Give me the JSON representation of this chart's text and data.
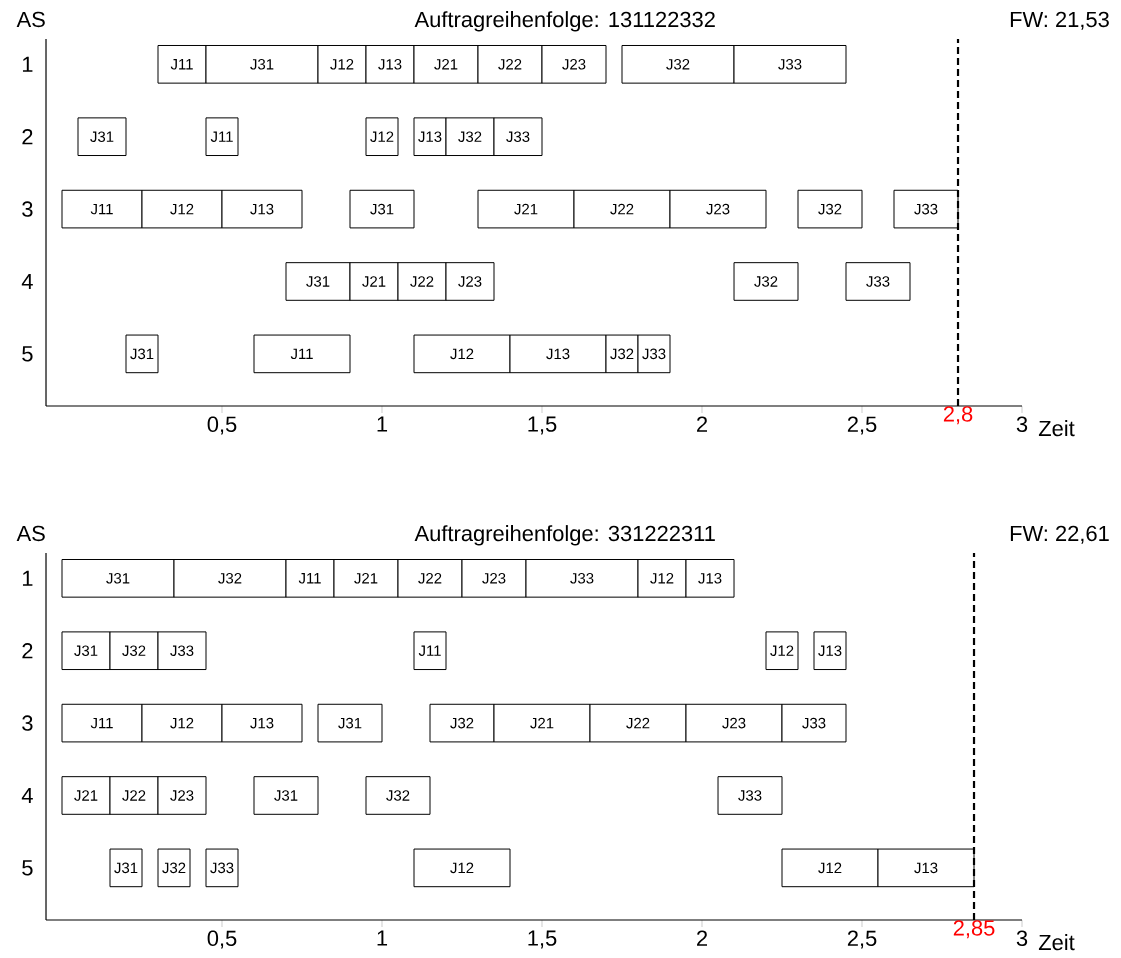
{
  "chart_data": [
    {
      "type": "bar",
      "orientation": "horizontal",
      "title": "Auftragreihenfolge: 131122332",
      "ylabel": "AS",
      "xlabel": "Zeit",
      "annotations": [
        "FW: 21,53"
      ],
      "categories": [
        "1",
        "2",
        "3",
        "4",
        "5"
      ],
      "xlim": [
        -0.05,
        3
      ],
      "xticks": [
        {
          "value": 0.5,
          "label": "0,5"
        },
        {
          "value": 1,
          "label": "1"
        },
        {
          "value": 1.5,
          "label": "1,5"
        },
        {
          "value": 2,
          "label": "2"
        },
        {
          "value": 2.5,
          "label": "2,5"
        },
        {
          "value": 3,
          "label": "3"
        }
      ],
      "ref_lines": [
        {
          "axis": "x",
          "value": 2.8,
          "label": "2,8",
          "line_style": "dashed"
        }
      ],
      "series": [
        {
          "color": "#ffffff",
          "values": [
            0.15,
            0.15,
            0.25,
            0.2,
            0.1
          ],
          "base": [
            0.3,
            0.05,
            0,
            0.7,
            0.2
          ],
          "value_labels": [
            "J11",
            "J31",
            "J11",
            "J31",
            "J31"
          ]
        },
        {
          "color": "#ffffff",
          "values": [
            0.35,
            0.1,
            0.25,
            0.15,
            0.3
          ],
          "base": [
            0.45,
            0.45,
            0.25,
            0.9,
            0.6
          ],
          "value_labels": [
            "J31",
            "J11",
            "J12",
            "J21",
            "J11"
          ]
        },
        {
          "color": "#ffffff",
          "values": [
            0.15,
            0.1,
            0.25,
            0.15,
            0.3
          ],
          "base": [
            0.8,
            0.95,
            0.5,
            1.05,
            1.1
          ],
          "value_labels": [
            "J12",
            "J12",
            "J13",
            "J22",
            "J12"
          ]
        },
        {
          "color": "#ffffff",
          "values": [
            0.15,
            0.1,
            0.2,
            0.15,
            0.3
          ],
          "base": [
            0.95,
            1.1,
            0.9,
            1.2,
            1.4
          ],
          "value_labels": [
            "J13",
            "J13",
            "J31",
            "J23",
            "J13"
          ]
        },
        {
          "color": "#ffffff",
          "values": [
            0.2,
            0.15,
            0.3,
            0.2,
            0.1
          ],
          "base": [
            1.1,
            1.2,
            1.3,
            2.1,
            1.7
          ],
          "value_labels": [
            "J21",
            "J32",
            "J21",
            "J32",
            "J32"
          ]
        },
        {
          "color": "#ffffff",
          "values": [
            0.2,
            0.15,
            0.3,
            0.2,
            0.1
          ],
          "base": [
            1.3,
            1.35,
            1.6,
            2.45,
            1.8
          ],
          "value_labels": [
            "J22",
            "J33",
            "J22",
            "J33",
            "J33"
          ]
        },
        {
          "color": "#ffffff",
          "values": [
            0.2,
            null,
            0.3,
            null,
            null
          ],
          "base": [
            1.5,
            null,
            1.9,
            null,
            null
          ],
          "value_labels": [
            "J23",
            null,
            "J23",
            null,
            null
          ]
        },
        {
          "color": "#ffffff",
          "values": [
            0.35,
            null,
            0.2,
            null,
            null
          ],
          "base": [
            1.75,
            null,
            2.3,
            null,
            null
          ],
          "value_labels": [
            "J32",
            null,
            "J32",
            null,
            null
          ]
        },
        {
          "color": "#ffffff",
          "values": [
            0.35,
            null,
            0.2,
            null,
            null
          ],
          "base": [
            2.1,
            null,
            2.6,
            null,
            null
          ],
          "value_labels": [
            "J33",
            null,
            "J33",
            null,
            null
          ]
        }
      ]
    },
    {
      "type": "bar",
      "orientation": "horizontal",
      "title": "Auftragreihenfolge: 331222311",
      "ylabel": "AS",
      "xlabel": "Zeit",
      "annotations": [
        "FW: 22,61"
      ],
      "categories": [
        "1",
        "2",
        "3",
        "4",
        "5"
      ],
      "xlim": [
        -0.05,
        3
      ],
      "xticks": [
        {
          "value": 0.5,
          "label": "0,5"
        },
        {
          "value": 1,
          "label": "1"
        },
        {
          "value": 1.5,
          "label": "1,5"
        },
        {
          "value": 2,
          "label": "2"
        },
        {
          "value": 2.5,
          "label": "2,5"
        },
        {
          "value": 3,
          "label": "3"
        }
      ],
      "ref_lines": [
        {
          "axis": "x",
          "value": 2.85,
          "label": "2,85",
          "line_style": "dashed"
        }
      ],
      "series": [
        {
          "color": "#ffffff",
          "values": [
            0.35,
            0.15,
            0.25,
            0.15,
            0.1
          ],
          "base": [
            0,
            0,
            0,
            0,
            0.15
          ],
          "value_labels": [
            "J31",
            "J31",
            "J11",
            "J21",
            "J31"
          ]
        },
        {
          "color": "#ffffff",
          "values": [
            0.35,
            0.15,
            0.25,
            0.15,
            0.1
          ],
          "base": [
            0.35,
            0.15,
            0.25,
            0.15,
            0.3
          ],
          "value_labels": [
            "J32",
            "J32",
            "J12",
            "J22",
            "J32"
          ]
        },
        {
          "color": "#ffffff",
          "values": [
            0.15,
            0.15,
            0.25,
            0.15,
            0.1
          ],
          "base": [
            0.7,
            0.3,
            0.5,
            0.3,
            0.45
          ],
          "value_labels": [
            "J11",
            "J33",
            "J13",
            "J23",
            "J33"
          ]
        },
        {
          "color": "#ffffff",
          "values": [
            0.2,
            0.1,
            0.2,
            0.2,
            0.3
          ],
          "base": [
            0.85,
            1.1,
            0.8,
            0.6,
            1.1
          ],
          "value_labels": [
            "J21",
            "J11",
            "J31",
            "J31",
            "J12"
          ]
        },
        {
          "color": "#ffffff",
          "values": [
            0.2,
            0.1,
            0.2,
            0.2,
            0.3
          ],
          "base": [
            1.05,
            2.2,
            1.15,
            0.95,
            2.25
          ],
          "value_labels": [
            "J22",
            "J12",
            "J32",
            "J32",
            "J12"
          ]
        },
        {
          "color": "#ffffff",
          "values": [
            0.2,
            0.1,
            0.3,
            0.2,
            0.3
          ],
          "base": [
            1.25,
            2.35,
            1.35,
            2.05,
            2.55
          ],
          "value_labels": [
            "J23",
            "J13",
            "J21",
            "J33",
            "J13"
          ]
        },
        {
          "color": "#ffffff",
          "values": [
            0.35,
            null,
            0.3,
            null,
            null
          ],
          "base": [
            1.45,
            null,
            1.65,
            null,
            null
          ],
          "value_labels": [
            "J33",
            null,
            "J22",
            null,
            null
          ]
        },
        {
          "color": "#ffffff",
          "values": [
            0.15,
            null,
            0.3,
            null,
            null
          ],
          "base": [
            1.8,
            null,
            1.95,
            null,
            null
          ],
          "value_labels": [
            "J12",
            null,
            "J23",
            null,
            null
          ]
        },
        {
          "color": "#ffffff",
          "values": [
            0.15,
            null,
            0.2,
            null,
            null
          ],
          "base": [
            1.95,
            null,
            2.25,
            null,
            null
          ],
          "value_labels": [
            "J13",
            null,
            "J33",
            null,
            null
          ]
        }
      ]
    }
  ]
}
